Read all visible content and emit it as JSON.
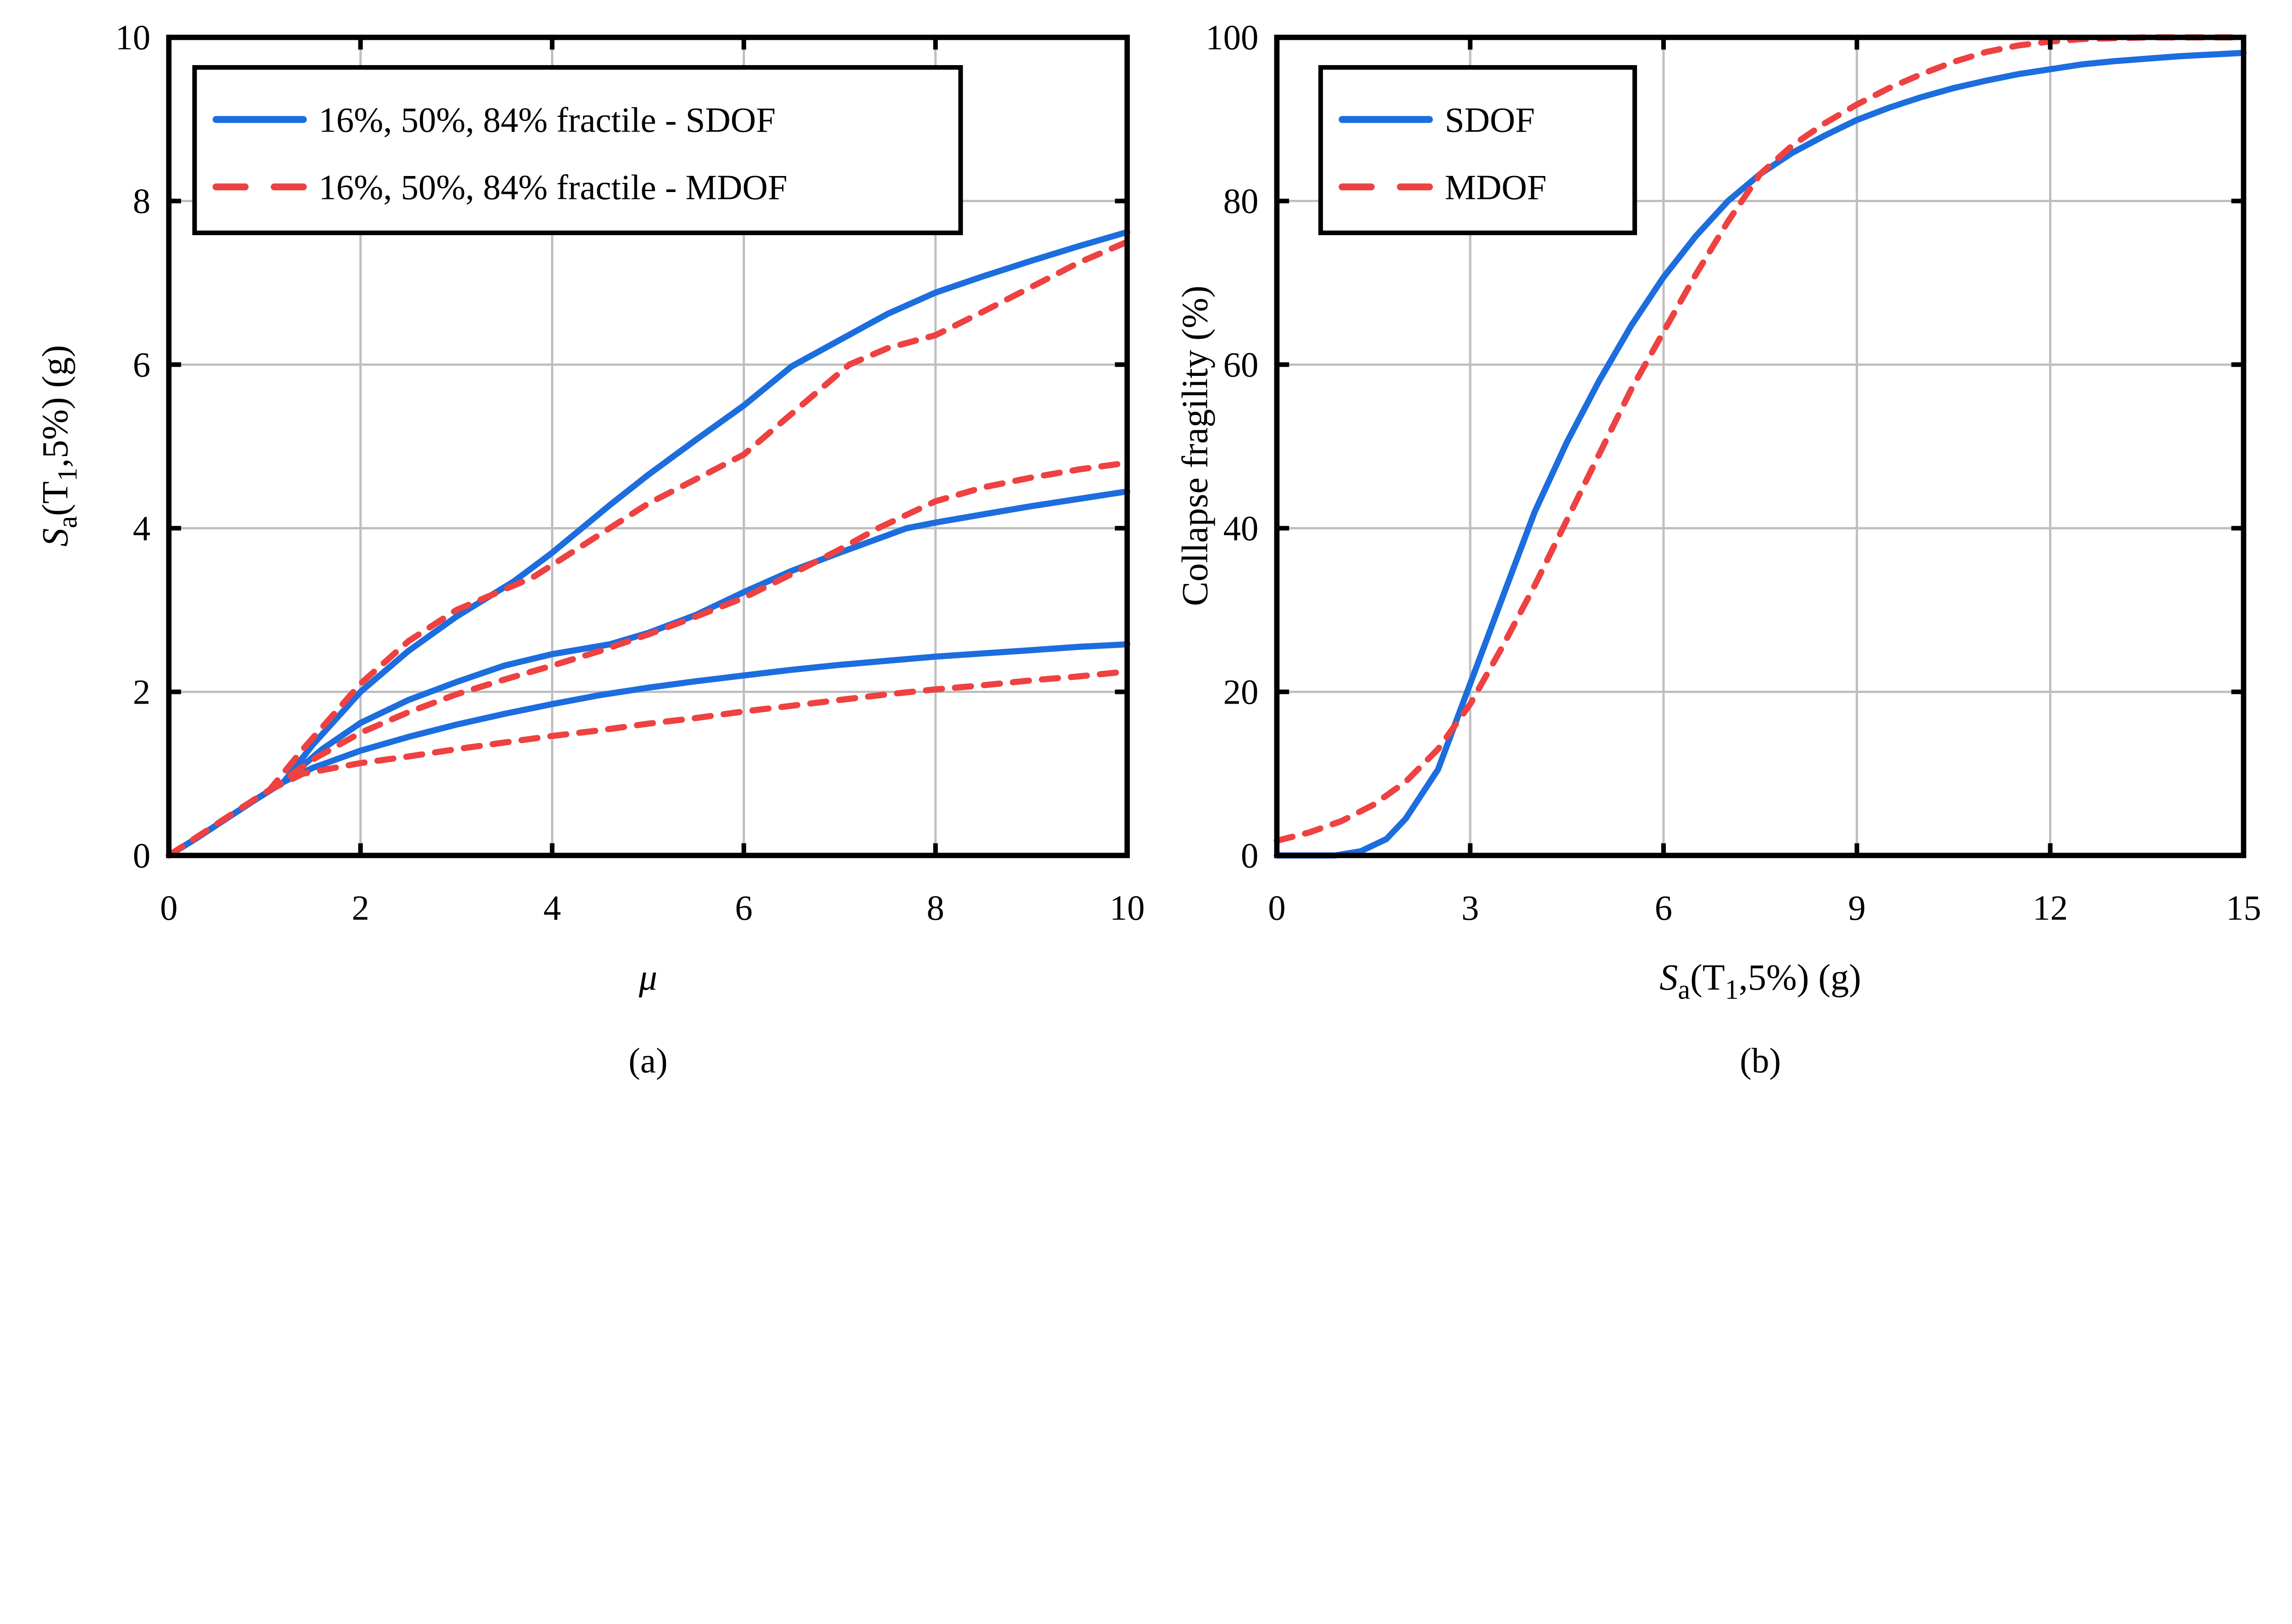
{
  "figure": {
    "background": "#ffffff",
    "colors": {
      "sdof": "#1c6dde",
      "mdof": "#ee4141",
      "grid": "#bfbfbf",
      "axis": "#000000"
    },
    "panels": [
      "a",
      "b"
    ]
  },
  "chart_data": [
    {
      "id": "a",
      "type": "line",
      "caption": "(a)",
      "xlabel": "μ",
      "ylabel_parts": {
        "s": "S",
        "sub1": "a",
        "mid": "(T",
        "sub2": "1",
        "tail": ",5%) (g)"
      },
      "xlim": [
        0,
        10
      ],
      "ylim": [
        0,
        10
      ],
      "xticks": [
        0,
        2,
        4,
        6,
        8,
        10
      ],
      "yticks": [
        0,
        2,
        4,
        6,
        8,
        10
      ],
      "grid": true,
      "legend": {
        "position": "northwest",
        "entries": [
          {
            "label": "16%, 50%, 84% fractile - SDOF",
            "style": "sdof"
          },
          {
            "label": "16%, 50%, 84% fractile - MDOF",
            "style": "mdof"
          }
        ]
      },
      "series": [
        {
          "name": "16% fractile - SDOF",
          "style": "sdof",
          "points": [
            [
              0,
              0
            ],
            [
              0.3,
              0.22
            ],
            [
              0.6,
              0.45
            ],
            [
              0.9,
              0.68
            ],
            [
              1.2,
              0.9
            ],
            [
              1.5,
              1.07
            ],
            [
              2,
              1.28
            ],
            [
              2.5,
              1.45
            ],
            [
              3,
              1.6
            ],
            [
              3.5,
              1.73
            ],
            [
              4,
              1.85
            ],
            [
              4.5,
              1.96
            ],
            [
              5,
              2.05
            ],
            [
              5.5,
              2.13
            ],
            [
              6,
              2.2
            ],
            [
              6.5,
              2.27
            ],
            [
              7,
              2.33
            ],
            [
              7.5,
              2.38
            ],
            [
              8,
              2.43
            ],
            [
              8.5,
              2.47
            ],
            [
              9,
              2.51
            ],
            [
              9.5,
              2.55
            ],
            [
              10,
              2.58
            ]
          ]
        },
        {
          "name": "50% fractile - SDOF",
          "style": "sdof",
          "points": [
            [
              0,
              0
            ],
            [
              0.3,
              0.22
            ],
            [
              0.6,
              0.45
            ],
            [
              0.9,
              0.68
            ],
            [
              1.2,
              0.9
            ],
            [
              1.6,
              1.3
            ],
            [
              2,
              1.62
            ],
            [
              2.5,
              1.9
            ],
            [
              3,
              2.12
            ],
            [
              3.5,
              2.32
            ],
            [
              4,
              2.46
            ],
            [
              4.6,
              2.58
            ],
            [
              5,
              2.72
            ],
            [
              5.5,
              2.94
            ],
            [
              6,
              3.22
            ],
            [
              6.5,
              3.48
            ],
            [
              7,
              3.7
            ],
            [
              7.7,
              4.0
            ],
            [
              8,
              4.07
            ],
            [
              8.5,
              4.17
            ],
            [
              9,
              4.27
            ],
            [
              9.5,
              4.36
            ],
            [
              10,
              4.45
            ]
          ]
        },
        {
          "name": "84% fractile - SDOF",
          "style": "sdof",
          "points": [
            [
              0,
              0
            ],
            [
              0.3,
              0.22
            ],
            [
              0.6,
              0.45
            ],
            [
              0.9,
              0.68
            ],
            [
              1.2,
              0.9
            ],
            [
              1.5,
              1.35
            ],
            [
              2,
              2.0
            ],
            [
              2.5,
              2.5
            ],
            [
              3,
              2.92
            ],
            [
              3.6,
              3.35
            ],
            [
              4,
              3.7
            ],
            [
              4.6,
              4.28
            ],
            [
              5,
              4.65
            ],
            [
              5.5,
              5.08
            ],
            [
              6,
              5.5
            ],
            [
              6.5,
              5.98
            ],
            [
              7,
              6.3
            ],
            [
              7.5,
              6.62
            ],
            [
              8,
              6.88
            ],
            [
              8.5,
              7.08
            ],
            [
              9,
              7.27
            ],
            [
              9.5,
              7.45
            ],
            [
              10,
              7.62
            ]
          ]
        },
        {
          "name": "16% fractile - MDOF",
          "style": "mdof",
          "points": [
            [
              0,
              0
            ],
            [
              0.3,
              0.23
            ],
            [
              0.6,
              0.46
            ],
            [
              0.9,
              0.69
            ],
            [
              1.05,
              0.8
            ],
            [
              1.4,
              1.0
            ],
            [
              2,
              1.13
            ],
            [
              2.5,
              1.21
            ],
            [
              3,
              1.3
            ],
            [
              3.5,
              1.38
            ],
            [
              4,
              1.46
            ],
            [
              4.5,
              1.53
            ],
            [
              5,
              1.61
            ],
            [
              5.5,
              1.68
            ],
            [
              6,
              1.76
            ],
            [
              6.5,
              1.83
            ],
            [
              7,
              1.9
            ],
            [
              7.5,
              1.97
            ],
            [
              8,
              2.03
            ],
            [
              8.5,
              2.08
            ],
            [
              9,
              2.14
            ],
            [
              9.5,
              2.19
            ],
            [
              10,
              2.25
            ]
          ]
        },
        {
          "name": "50% fractile - MDOF",
          "style": "mdof",
          "points": [
            [
              0,
              0
            ],
            [
              0.3,
              0.23
            ],
            [
              0.6,
              0.46
            ],
            [
              0.9,
              0.69
            ],
            [
              1.05,
              0.8
            ],
            [
              1.5,
              1.17
            ],
            [
              2,
              1.5
            ],
            [
              2.5,
              1.75
            ],
            [
              3,
              1.97
            ],
            [
              3.5,
              2.15
            ],
            [
              4,
              2.32
            ],
            [
              4.5,
              2.5
            ],
            [
              5,
              2.7
            ],
            [
              5.5,
              2.92
            ],
            [
              6,
              3.15
            ],
            [
              6.5,
              3.44
            ],
            [
              7,
              3.74
            ],
            [
              7.4,
              4.0
            ],
            [
              8,
              4.33
            ],
            [
              8.5,
              4.5
            ],
            [
              9,
              4.62
            ],
            [
              9.5,
              4.72
            ],
            [
              10,
              4.8
            ]
          ]
        },
        {
          "name": "84% fractile - MDOF",
          "style": "mdof",
          "points": [
            [
              0,
              0
            ],
            [
              0.3,
              0.23
            ],
            [
              0.6,
              0.46
            ],
            [
              0.9,
              0.69
            ],
            [
              1.05,
              0.8
            ],
            [
              1.4,
              1.3
            ],
            [
              2,
              2.1
            ],
            [
              2.5,
              2.62
            ],
            [
              3,
              3.0
            ],
            [
              3.8,
              3.4
            ],
            [
              4.6,
              4.0
            ],
            [
              5,
              4.3
            ],
            [
              5.5,
              4.6
            ],
            [
              6,
              4.9
            ],
            [
              6.5,
              5.4
            ],
            [
              7.1,
              6.0
            ],
            [
              7.5,
              6.2
            ],
            [
              8,
              6.36
            ],
            [
              8.5,
              6.65
            ],
            [
              9,
              6.95
            ],
            [
              9.5,
              7.25
            ],
            [
              10,
              7.5
            ]
          ]
        }
      ]
    },
    {
      "id": "b",
      "type": "line",
      "caption": "(b)",
      "xlabel_parts": {
        "s": "S",
        "sub1": "a",
        "mid": "(T",
        "sub2": "1",
        "tail": ",5%) (g)"
      },
      "ylabel": "Collapse fragility (%)",
      "xlim": [
        0,
        15
      ],
      "ylim": [
        0,
        100
      ],
      "xticks": [
        0,
        3,
        6,
        9,
        12,
        15
      ],
      "yticks": [
        0,
        20,
        40,
        60,
        80,
        100
      ],
      "grid": true,
      "legend": {
        "position": "northwest",
        "entries": [
          {
            "label": "SDOF",
            "style": "sdof"
          },
          {
            "label": "MDOF",
            "style": "mdof"
          }
        ]
      },
      "series": [
        {
          "name": "SDOF",
          "style": "sdof",
          "points": [
            [
              0,
              0
            ],
            [
              0.9,
              0
            ],
            [
              1.3,
              0.5
            ],
            [
              1.7,
              2
            ],
            [
              2,
              4.5
            ],
            [
              2.5,
              10.5
            ],
            [
              3,
              21
            ],
            [
              3.5,
              31.5
            ],
            [
              4,
              42
            ],
            [
              4.5,
              50.5
            ],
            [
              5,
              58
            ],
            [
              5.5,
              64.8
            ],
            [
              6,
              70.7
            ],
            [
              6.5,
              75.7
            ],
            [
              7,
              80
            ],
            [
              7.5,
              83.3
            ],
            [
              8,
              85.9
            ],
            [
              8.5,
              88
            ],
            [
              9,
              89.9
            ],
            [
              9.5,
              91.4
            ],
            [
              10,
              92.7
            ],
            [
              10.5,
              93.8
            ],
            [
              11,
              94.7
            ],
            [
              11.5,
              95.5
            ],
            [
              12,
              96.1
            ],
            [
              12.5,
              96.7
            ],
            [
              13,
              97.1
            ],
            [
              13.5,
              97.4
            ],
            [
              14,
              97.7
            ],
            [
              14.5,
              97.9
            ],
            [
              15,
              98.1
            ]
          ]
        },
        {
          "name": "MDOF",
          "style": "mdof",
          "points": [
            [
              0,
              1.8
            ],
            [
              0.5,
              2.8
            ],
            [
              1,
              4.2
            ],
            [
              1.5,
              6.2
            ],
            [
              2,
              9
            ],
            [
              2.5,
              13
            ],
            [
              3,
              18.5
            ],
            [
              3.5,
              25.5
            ],
            [
              4,
              33
            ],
            [
              4.5,
              41
            ],
            [
              5,
              49
            ],
            [
              5.5,
              57
            ],
            [
              6,
              64
            ],
            [
              6.5,
              71
            ],
            [
              7,
              77.5
            ],
            [
              7.5,
              83.3
            ],
            [
              8,
              86.8
            ],
            [
              8.5,
              89.5
            ],
            [
              9,
              91.8
            ],
            [
              9.5,
              93.8
            ],
            [
              10,
              95.5
            ],
            [
              10.5,
              97
            ],
            [
              11,
              98.2
            ],
            [
              11.5,
              99
            ],
            [
              12,
              99.5
            ],
            [
              12.5,
              99.8
            ],
            [
              13,
              99.9
            ],
            [
              13.5,
              100
            ],
            [
              14,
              100
            ],
            [
              14.5,
              100
            ],
            [
              15,
              100
            ]
          ]
        }
      ]
    }
  ]
}
